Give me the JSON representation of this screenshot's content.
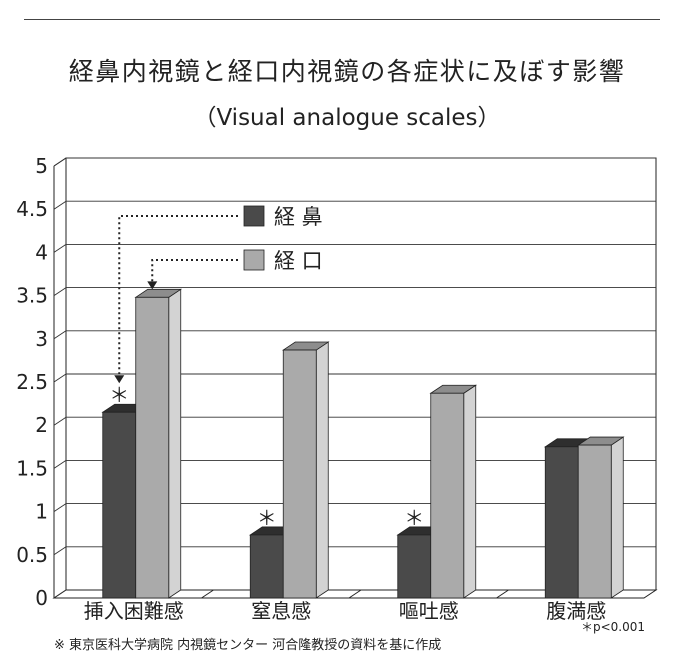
{
  "header": {
    "title": "経鼻内視鏡と経口内視鏡の各症状に及ぼす影響",
    "subtitle": "（Visual analogue scales）"
  },
  "chart_data": {
    "type": "bar",
    "categories": [
      "挿入困難感",
      "窒息感",
      "嘔吐感",
      "腹満感"
    ],
    "series": [
      {
        "name": "経 鼻",
        "values": [
          2.15,
          0.73,
          0.73,
          1.75
        ],
        "color": "#4a4a4a",
        "top_color": "#2e2e2e",
        "side_color": "#1c1c1c"
      },
      {
        "name": "経 口",
        "values": [
          3.48,
          2.87,
          2.37,
          1.77
        ],
        "color": "#aaaaaa",
        "top_color": "#8d8d8d",
        "side_color": "#d3d3d3"
      }
    ],
    "ylim": [
      0,
      5
    ],
    "yticks": [
      "0",
      "0.5",
      "1",
      "1.5",
      "2",
      "2.5",
      "3",
      "3.5",
      "4",
      "4.5",
      "5"
    ],
    "grid": true,
    "legend_position": "top-left",
    "significance_marker": "＊",
    "significant_categories": [
      0,
      1,
      2
    ],
    "xlabel": "",
    "ylabel": ""
  },
  "footnote": "※ 東京医科大学病院  内視鏡センター  河合隆教授の資料を基に作成",
  "p_note": "＊p<0.001"
}
